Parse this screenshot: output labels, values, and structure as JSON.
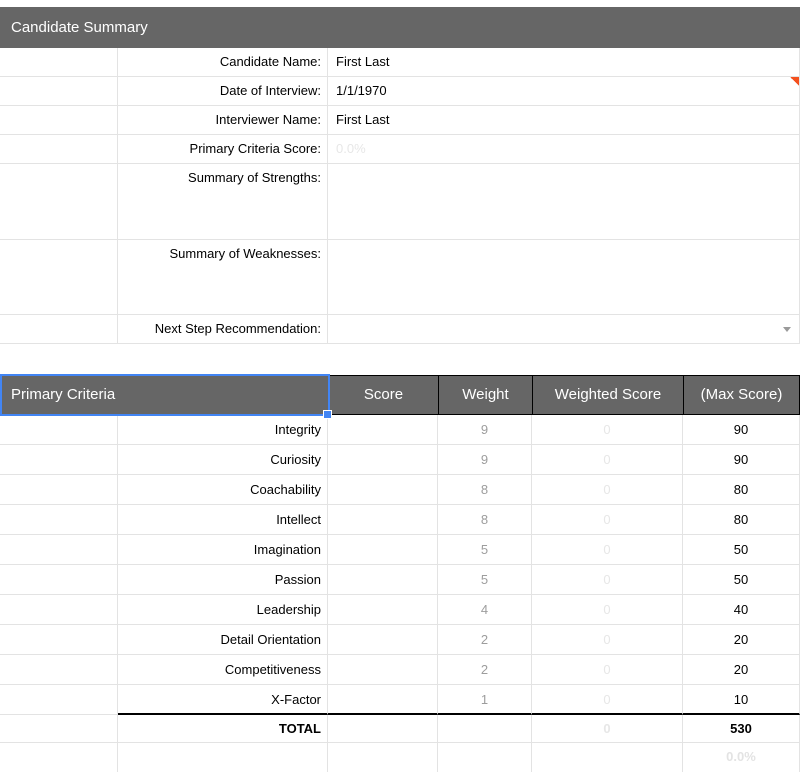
{
  "title_bar": {
    "title": "Candidate Summary"
  },
  "summary_fields": [
    {
      "label": "Candidate Name:",
      "value": "First Last"
    },
    {
      "label": "Date of Interview:",
      "value": "1/1/1970",
      "has_comment_indicator": true
    },
    {
      "label": "Interviewer Name:",
      "value": "First Last"
    },
    {
      "label": "Primary Criteria Score:",
      "value": "0.0%",
      "value_muted": true
    },
    {
      "label": "Summary of Strengths:",
      "value": ""
    },
    {
      "label": "Summary of Weaknesses:",
      "value": ""
    },
    {
      "label": "Next Step Recommendation:",
      "value": "",
      "has_dropdown": true
    }
  ],
  "criteria_table": {
    "title": "Primary Criteria",
    "columns": [
      "Score",
      "Weight",
      "Weighted Score",
      "(Max Score)"
    ],
    "rows": [
      {
        "name": "Integrity",
        "score": "",
        "weight": "9",
        "weighted": "0",
        "max": "90"
      },
      {
        "name": "Curiosity",
        "score": "",
        "weight": "9",
        "weighted": "0",
        "max": "90"
      },
      {
        "name": "Coachability",
        "score": "",
        "weight": "8",
        "weighted": "0",
        "max": "80"
      },
      {
        "name": "Intellect",
        "score": "",
        "weight": "8",
        "weighted": "0",
        "max": "80"
      },
      {
        "name": "Imagination",
        "score": "",
        "weight": "5",
        "weighted": "0",
        "max": "50"
      },
      {
        "name": "Passion",
        "score": "",
        "weight": "5",
        "weighted": "0",
        "max": "50"
      },
      {
        "name": "Leadership",
        "score": "",
        "weight": "4",
        "weighted": "0",
        "max": "40"
      },
      {
        "name": "Detail Orientation",
        "score": "",
        "weight": "2",
        "weighted": "0",
        "max": "20"
      },
      {
        "name": "Competitiveness",
        "score": "",
        "weight": "2",
        "weighted": "0",
        "max": "20"
      },
      {
        "name": "X-Factor",
        "score": "",
        "weight": "1",
        "weighted": "0",
        "max": "10"
      }
    ],
    "total_row": {
      "label": "TOTAL",
      "score": "",
      "weight": "",
      "weighted": "0",
      "max": "530"
    },
    "footer_row": {
      "percent": "0.0%"
    }
  },
  "selection": {
    "selected_cell": "Primary Criteria"
  },
  "icons": {
    "comment_indicator": "orange corner triangle",
    "dropdown_arrow": "gray down triangle",
    "fill_handle": "blue square handle"
  },
  "colors": {
    "header_bg": "#666666",
    "header_text": "#ffffff",
    "gridline": "#e3e3e3",
    "black_border": "#000000",
    "selection_blue": "#4285f4",
    "comment_orange": "#f4501e",
    "weight_text_gray": "#9d9d9d",
    "muted_value_gray": "#e7e7e7"
  }
}
